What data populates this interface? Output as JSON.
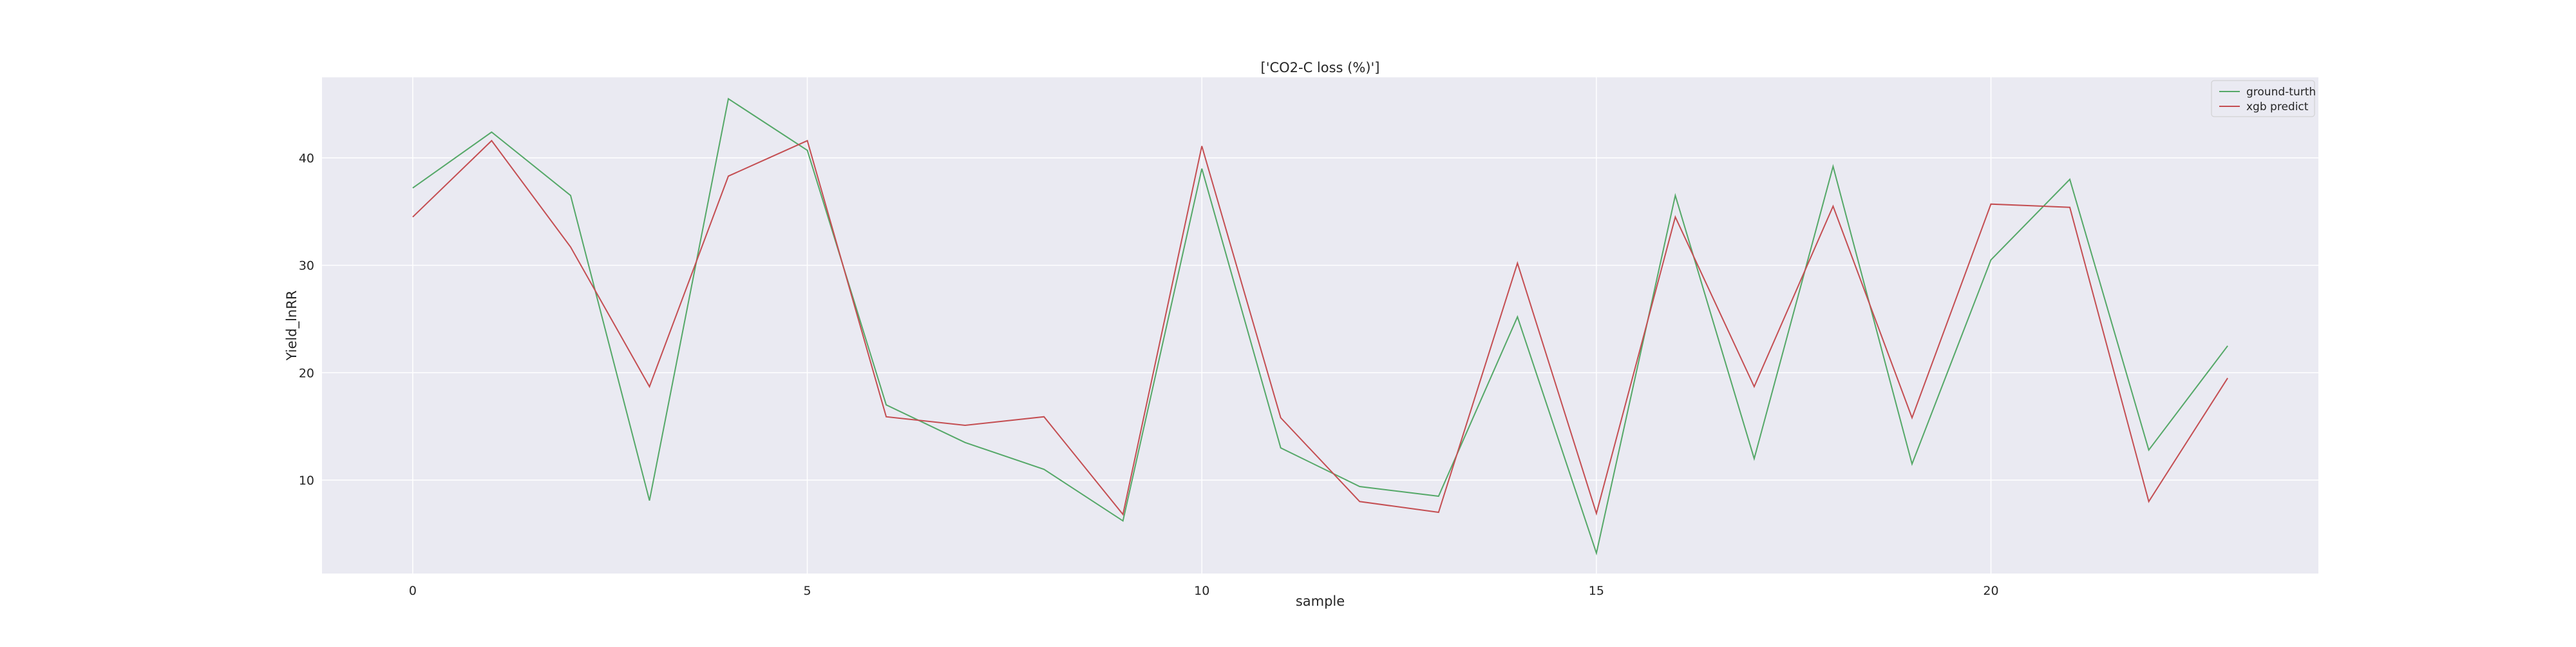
{
  "chart_data": {
    "type": "line",
    "title": "['CO2-C loss (%)']",
    "xlabel": "sample",
    "ylabel": "Yield_lnRR",
    "xlim": [
      -1.15,
      24.15
    ],
    "ylim": [
      1.3,
      47.5
    ],
    "xticks": [
      0,
      5,
      10,
      15,
      20
    ],
    "yticks": [
      10,
      20,
      30,
      40
    ],
    "grid": true,
    "legend_position": "top-right",
    "x": [
      0,
      1,
      2,
      3,
      4,
      5,
      6,
      7,
      8,
      9,
      10,
      11,
      12,
      13,
      14,
      15,
      16,
      17,
      18,
      19,
      20,
      21,
      22,
      23
    ],
    "series": [
      {
        "name": "ground-turth",
        "color": "#55a868",
        "values": [
          37.2,
          42.4,
          36.5,
          8.1,
          45.5,
          40.7,
          17.0,
          13.5,
          11.0,
          6.2,
          39.0,
          13.0,
          9.4,
          8.5,
          25.2,
          3.2,
          36.5,
          12.0,
          39.2,
          11.5,
          30.5,
          38.0,
          12.8,
          22.5
        ]
      },
      {
        "name": "xgb predict",
        "color": "#c44e52",
        "values": [
          34.5,
          41.6,
          31.7,
          18.7,
          38.3,
          41.6,
          15.9,
          15.1,
          15.9,
          6.8,
          41.1,
          15.8,
          8.0,
          7.0,
          30.2,
          6.9,
          34.5,
          18.7,
          35.5,
          15.8,
          35.7,
          35.4,
          8.0,
          19.5
        ]
      }
    ]
  }
}
